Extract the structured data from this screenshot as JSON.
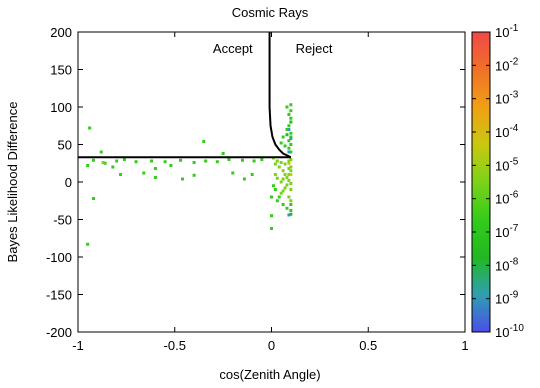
{
  "chart_data": {
    "type": "heatmap",
    "title": "Cosmic Rays",
    "xlabel": "cos(Zenith Angle)",
    "ylabel": "Bayes Likelihood Difference",
    "xlim": [
      -1,
      1
    ],
    "ylim": [
      -200,
      200
    ],
    "x_ticks": [
      {
        "value": -1,
        "label": "-1"
      },
      {
        "value": -0.5,
        "label": "-0.5"
      },
      {
        "value": 0,
        "label": "0"
      },
      {
        "value": 0.5,
        "label": "0.5"
      },
      {
        "value": 1,
        "label": "1"
      }
    ],
    "y_ticks": [
      {
        "value": -200,
        "label": "-200"
      },
      {
        "value": -150,
        "label": "-150"
      },
      {
        "value": -100,
        "label": "-100"
      },
      {
        "value": -50,
        "label": "-50"
      },
      {
        "value": 0,
        "label": "0"
      },
      {
        "value": 50,
        "label": "50"
      },
      {
        "value": 100,
        "label": "100"
      },
      {
        "value": 150,
        "label": "150"
      },
      {
        "value": 200,
        "label": "200"
      }
    ],
    "grid": false,
    "colorbar": {
      "scale": "log",
      "range": [
        1e-10,
        0.1
      ],
      "ticks": [
        {
          "exp": "-1"
        },
        {
          "exp": "-2"
        },
        {
          "exp": "-3"
        },
        {
          "exp": "-4"
        },
        {
          "exp": "-5"
        },
        {
          "exp": "-6"
        },
        {
          "exp": "-7"
        },
        {
          "exp": "-8"
        },
        {
          "exp": "-9"
        },
        {
          "exp": "-10"
        }
      ],
      "base": "10",
      "colors": [
        "#4a4ee8",
        "#2f9fb0",
        "#22b822",
        "#33cc1a",
        "#7dd21a",
        "#c8c810",
        "#f0a014",
        "#f07028",
        "#f04848"
      ]
    },
    "annotations": [
      {
        "text": "Accept",
        "x": -0.2,
        "y": 172
      },
      {
        "text": "Reject",
        "x": 0.22,
        "y": 172
      }
    ],
    "cut_curve": {
      "vertical_x": -0.01,
      "horizontal_y": 33,
      "points": [
        [
          -0.01,
          200
        ],
        [
          -0.01,
          100
        ],
        [
          -0.005,
          75
        ],
        [
          0.005,
          60
        ],
        [
          0.02,
          50
        ],
        [
          0.04,
          43
        ],
        [
          0.06,
          38
        ],
        [
          0.1,
          33
        ]
      ],
      "horizontal_points": [
        [
          -1,
          33
        ],
        [
          0.1,
          33
        ]
      ]
    },
    "cells": [
      [
        -0.94,
        72,
        -7
      ],
      [
        -0.88,
        40,
        -7
      ],
      [
        -0.92,
        29,
        -7
      ],
      [
        -0.95,
        22,
        -7
      ],
      [
        -0.86,
        25,
        -7
      ],
      [
        -0.8,
        28,
        -7
      ],
      [
        -0.76,
        30,
        -7
      ],
      [
        -0.7,
        27,
        -7
      ],
      [
        -0.62,
        28,
        -7
      ],
      [
        -0.55,
        27,
        -7
      ],
      [
        -0.47,
        29,
        -7
      ],
      [
        -0.4,
        26,
        -7
      ],
      [
        -0.34,
        28,
        -7
      ],
      [
        -0.28,
        27,
        -7
      ],
      [
        -0.22,
        30,
        -7
      ],
      [
        -0.15,
        29,
        -7
      ],
      [
        -0.09,
        28,
        -7
      ],
      [
        -0.05,
        30,
        -7
      ],
      [
        -0.35,
        54,
        -7
      ],
      [
        -0.25,
        38,
        -7
      ],
      [
        -0.82,
        20,
        -7
      ],
      [
        -0.78,
        10,
        -7
      ],
      [
        -0.66,
        12,
        -7
      ],
      [
        -0.6,
        6,
        -7
      ],
      [
        -0.6,
        18,
        -7
      ],
      [
        -0.46,
        4,
        -7
      ],
      [
        -0.4,
        9,
        -7
      ],
      [
        -0.2,
        12,
        -7
      ],
      [
        -0.14,
        4,
        -7
      ],
      [
        -0.1,
        10,
        -7
      ],
      [
        -0.92,
        -22,
        -7
      ],
      [
        -0.95,
        -83,
        -7
      ],
      [
        -0.87,
        26,
        -6
      ],
      [
        -0.52,
        22,
        -7
      ],
      [
        0.02,
        24,
        -6
      ],
      [
        0.04,
        20,
        -6
      ],
      [
        0.06,
        15,
        -6
      ],
      [
        0.07,
        10,
        -5
      ],
      [
        0.08,
        6,
        -5
      ],
      [
        0.09,
        2,
        -5
      ],
      [
        0.1,
        -2,
        -5
      ],
      [
        0.08,
        -4,
        -5
      ],
      [
        0.07,
        -8,
        -6
      ],
      [
        0.06,
        -12,
        -6
      ],
      [
        0.05,
        -15,
        -6
      ],
      [
        0.04,
        -20,
        -7
      ],
      [
        0.03,
        -25,
        -7
      ],
      [
        0.06,
        -30,
        -7
      ],
      [
        0.08,
        -35,
        -7
      ],
      [
        0.1,
        -38,
        -7
      ],
      [
        0.09,
        -44,
        -9
      ],
      [
        0.1,
        -43,
        -8
      ],
      [
        0.0,
        -45,
        -7
      ],
      [
        0.0,
        -62,
        -7
      ],
      [
        0.02,
        10,
        -6
      ],
      [
        0.03,
        5,
        -6
      ],
      [
        0.05,
        0,
        -6
      ],
      [
        0.06,
        4,
        -5
      ],
      [
        0.09,
        10,
        -5
      ],
      [
        0.1,
        15,
        -5
      ],
      [
        0.1,
        20,
        -5
      ],
      [
        0.09,
        25,
        -4
      ],
      [
        0.1,
        30,
        -5
      ],
      [
        0.1,
        40,
        -7
      ],
      [
        0.09,
        45,
        -7
      ],
      [
        0.1,
        50,
        -7
      ],
      [
        0.09,
        55,
        -7
      ],
      [
        0.1,
        60,
        -7
      ],
      [
        0.1,
        65,
        -7
      ],
      [
        0.08,
        70,
        -7
      ],
      [
        0.09,
        75,
        -7
      ],
      [
        0.1,
        80,
        -8
      ],
      [
        0.1,
        85,
        -7
      ],
      [
        0.09,
        90,
        -7
      ],
      [
        0.1,
        95,
        -7
      ],
      [
        0.08,
        100,
        -7
      ],
      [
        0.1,
        103,
        -7
      ],
      [
        0.09,
        70,
        -9
      ],
      [
        0.1,
        58,
        -9
      ],
      [
        0.08,
        63,
        -8
      ],
      [
        0.09,
        40,
        -9
      ],
      [
        0.06,
        60,
        -7
      ],
      [
        0.05,
        52,
        -7
      ],
      [
        0.07,
        48,
        -7
      ],
      [
        0.1,
        10,
        -4
      ],
      [
        0.09,
        18,
        -5
      ],
      [
        0.1,
        -10,
        -6
      ],
      [
        0.09,
        -20,
        -6
      ],
      [
        0.1,
        -25,
        -6
      ],
      [
        0.1,
        -30,
        -7
      ],
      [
        0.01,
        -5,
        -7
      ],
      [
        0.02,
        -10,
        -7
      ],
      [
        0.0,
        -20,
        -7
      ],
      [
        0.01,
        32,
        -6
      ],
      [
        0.03,
        28,
        -6
      ],
      [
        0.05,
        26,
        -5
      ],
      [
        0.07,
        24,
        -5
      ],
      [
        0.09,
        28,
        -5
      ]
    ]
  }
}
